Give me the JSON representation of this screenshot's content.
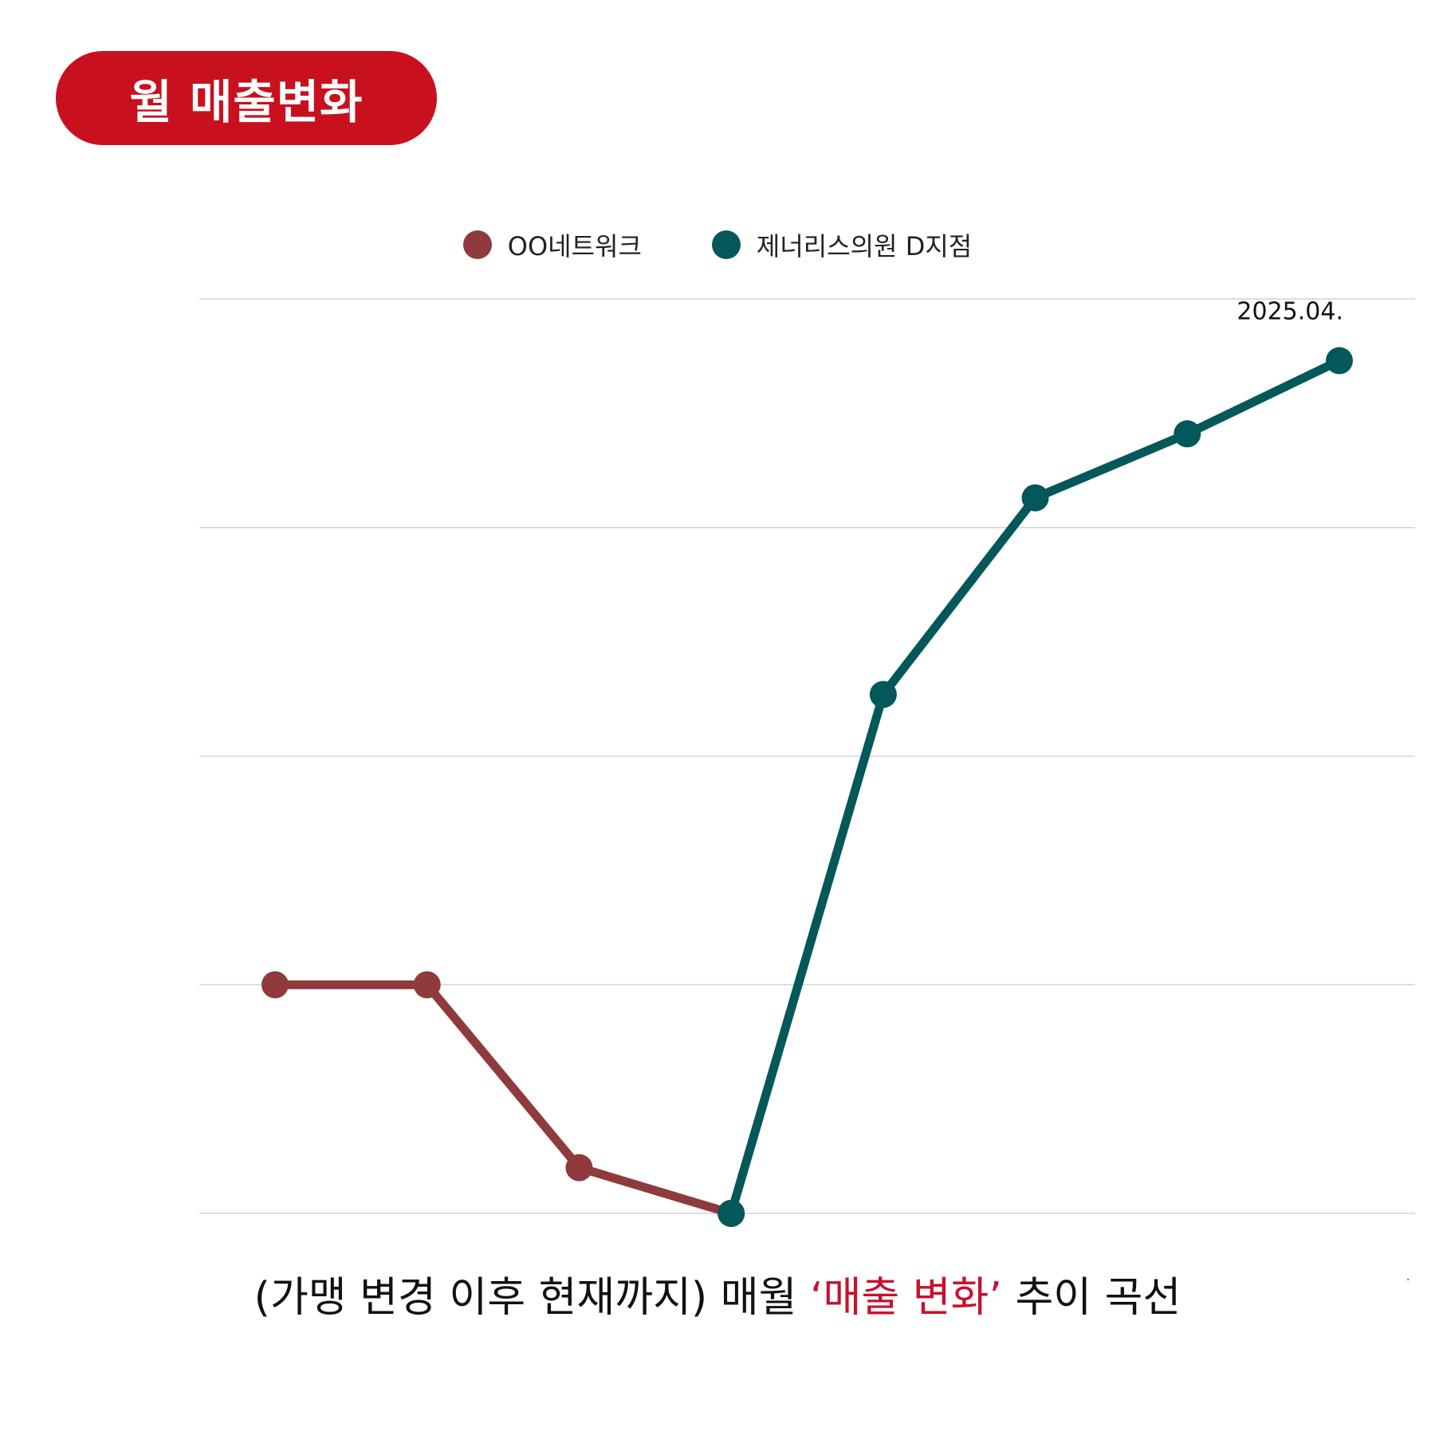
{
  "title": "월 매출변화",
  "colors": {
    "title_bg": "#c8101e",
    "accent": "#c8102e",
    "grid": "#d4d4d4"
  },
  "legend": [
    {
      "label": "OO네트워크",
      "color": "#8f3a3c"
    },
    {
      "label": "제너리스의원 D지점",
      "color": "#04585a"
    }
  ],
  "chart_data": {
    "type": "line",
    "x": [
      1,
      2,
      3,
      4,
      5,
      6,
      7,
      8
    ],
    "ylim": [
      0,
      4
    ],
    "grid": true,
    "legend_position": "top",
    "series": [
      {
        "name": "OO네트워크",
        "color": "#8f3a3c",
        "x": [
          1,
          2,
          3,
          4
        ],
        "values": [
          1.0,
          1.0,
          0.2,
          0.0
        ]
      },
      {
        "name": "제너리스의원 D지점",
        "color": "#04585a",
        "x": [
          4,
          5,
          6,
          7,
          8
        ],
        "values": [
          0.0,
          2.27,
          3.13,
          3.41,
          3.73
        ]
      }
    ],
    "annotations": [
      {
        "text": "2025.04."
      }
    ]
  },
  "caption": {
    "before": "(가맹 변경 이후 현재까지) 매월 ",
    "highlight": "‘매출 변화’",
    "after": " 추이 곡선"
  },
  "footnote_mark": "."
}
